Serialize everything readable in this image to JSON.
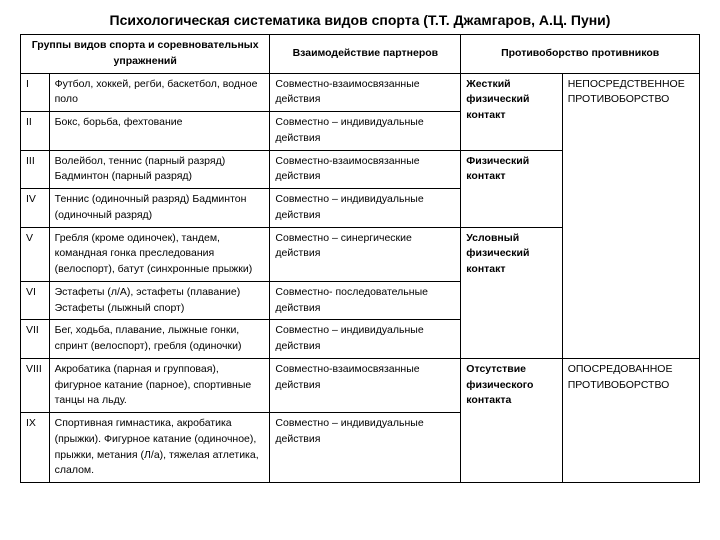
{
  "title": "Психологическая систематика видов спорта (Т.Т. Джамгаров, А.Ц. Пуни)",
  "h": {
    "groups": "Группы видов спорта и соревновательных упражнений",
    "partner": "Взаимодействие партнеров",
    "opponent": "Противоборство противников"
  },
  "r": [
    {
      "n": "I",
      "g": "Футбол, хоккей, регби, баскетбол, водное поло",
      "p": "Совместно-взаимосвязанные действия"
    },
    {
      "n": "II",
      "g": "Бокс, борьба, фехтование",
      "p": "Совместно – индивидуальные действия"
    },
    {
      "n": "III",
      "g": "Волейбол, теннис (парный разряд) Бадминтон (парный разряд)",
      "p": "Совместно-взаимосвязанные действия"
    },
    {
      "n": "IV",
      "g": "Теннис (одиночный разряд) Бадминтон (одиночный разряд)",
      "p": "Совместно – индивидуальные действия"
    },
    {
      "n": "V",
      "g": "Гребля (кроме одиночек), тандем, командная гонка преследования (велоспорт), батут (синхронные прыжки)",
      "p": "Совместно – синергические действия"
    },
    {
      "n": "VI",
      "g": "Эстафеты (л/А), эстафеты (плавание) Эстафеты (лыжный спорт)",
      "p": "Совместно- последовательные действия"
    },
    {
      "n": "VII",
      "g": "Бег, ходьба, плавание, лыжные гонки, спринт (велоспорт), гребля (одиночки)",
      "p": "Совместно – индивидуальные действия"
    },
    {
      "n": "VIII",
      "g": "Акробатика (парная и групповая), фигурное катание (парное), спортивные танцы на льду.",
      "p": "Совместно-взаимосвязанные действия"
    },
    {
      "n": "IX",
      "g": "Спортивная гимнастика, акробатика (прыжки). Фигурное катание (одиночное), прыжки, метания (Л/а), тяжелая атлетика, слалом.",
      "p": "Совместно – индивидуальные действия"
    }
  ],
  "opp1": {
    "a": "Жесткий физический контакт",
    "b": "Физический контакт",
    "c": "Условный физический контакт",
    "d": "Отсутствие физического контакта"
  },
  "opp2": {
    "a": "НЕПОСРЕДСТВЕННОЕ ПРОТИВОБОРСТВО",
    "b": "ОПОСРЕДОВАННОЕ ПРОТИВОБОРСТВО"
  }
}
